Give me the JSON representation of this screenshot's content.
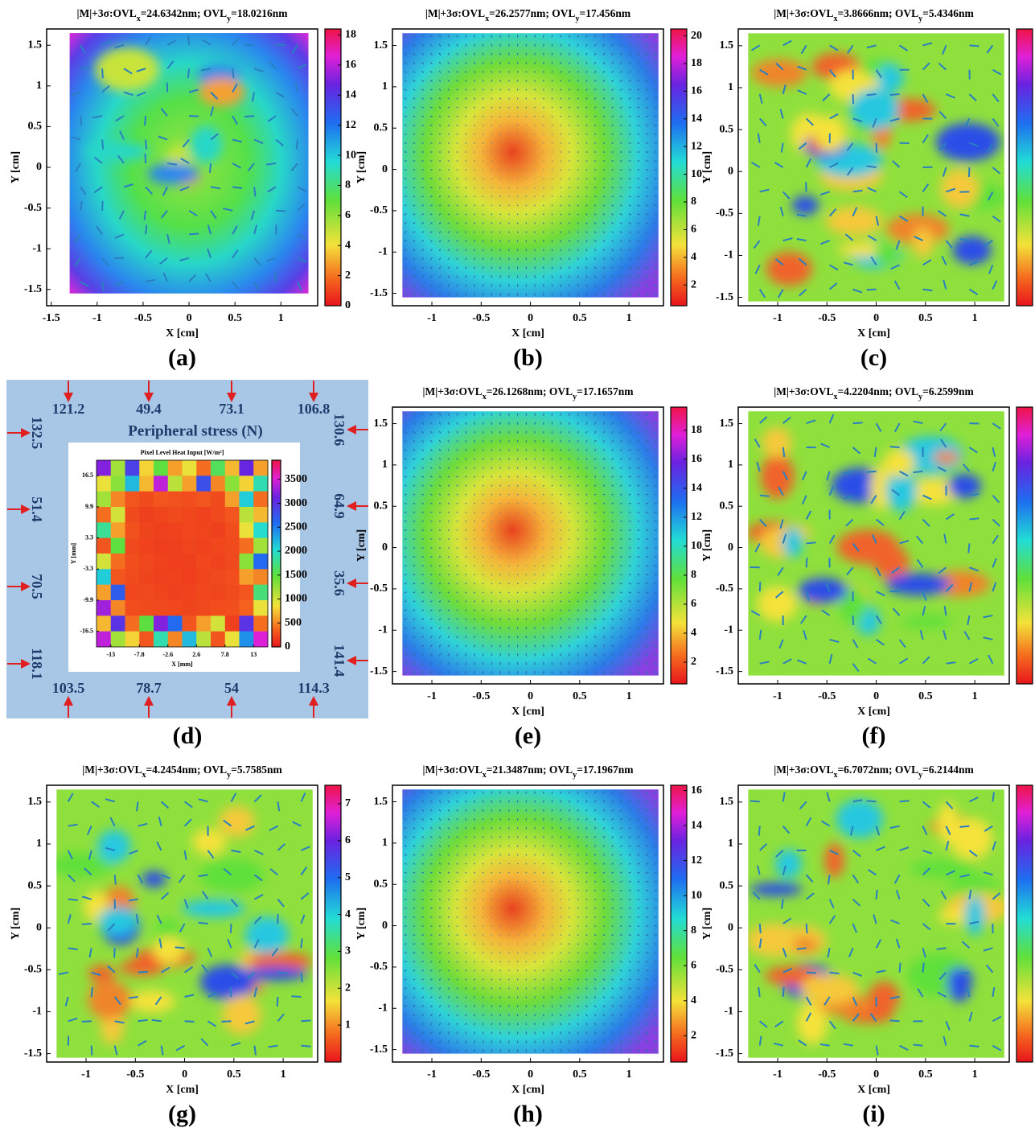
{
  "chart_data": [
    {
      "type": "contour",
      "title": [
        "|M|+3σ:OVL",
        "x",
        "=24.6342nm; OVL",
        "y",
        "=18.0216nm"
      ],
      "xlabel": "X [cm]",
      "ylabel": "Y [cm]",
      "xlim": [
        -1.55,
        1.4
      ],
      "xticks": [
        -1.5,
        -1,
        -0.5,
        0,
        0.5,
        1
      ],
      "ylim": [
        -1.7,
        1.7
      ],
      "yticks": [
        -1.5,
        -1,
        -0.5,
        0,
        0.5,
        1,
        1.5
      ],
      "clim": [
        0,
        18.4
      ],
      "cticks": [
        0,
        2,
        4,
        6,
        8,
        10,
        12,
        14,
        16,
        18
      ],
      "panel": "(a)"
    },
    {
      "type": "contour",
      "title": [
        "|M|+3σ:OVL",
        "x",
        "=26.2577nm; OVL",
        "y",
        "=17.456nm"
      ],
      "xlabel": "X [cm]",
      "ylabel": "Y [cm]",
      "xlim": [
        -1.4,
        1.35
      ],
      "xticks": [
        -1,
        -0.5,
        0,
        0.5,
        1
      ],
      "ylim": [
        -1.65,
        1.7
      ],
      "yticks": [
        -1.5,
        -1,
        -0.5,
        0,
        0.5,
        1,
        1.5
      ],
      "clim": [
        0.5,
        20.5
      ],
      "cticks": [
        2,
        4,
        6,
        8,
        10,
        12,
        14,
        16,
        18,
        20
      ],
      "panel": "(b)"
    },
    {
      "type": "contour",
      "title": [
        "|M|+3σ:OVL",
        "x",
        "=3.8666nm; OVL",
        "y",
        "=5.4346nm"
      ],
      "xlabel": "X [cm]",
      "ylabel": "Y [cm]",
      "xlim": [
        -1.4,
        1.35
      ],
      "xticks": [
        -1,
        -0.5,
        0,
        0.5,
        1
      ],
      "ylim": [
        -1.6,
        1.7
      ],
      "yticks": [
        -1.5,
        -1,
        -0.5,
        0,
        0.5,
        1,
        1.5
      ],
      "panel": "(c)"
    },
    {
      "type": "heatmap",
      "title": "Pixel Level Heat Input [W/m²]",
      "xlabel": "X [mm]",
      "ylabel": "Y [mm]",
      "xlim": [
        -15.6,
        15.6
      ],
      "xticks": [
        -13,
        -7.8,
        -2.6,
        2.6,
        7.8,
        13
      ],
      "ylim": [
        -19.8,
        19.8
      ],
      "yticks": [
        16.5,
        9.9,
        3.3,
        -3.3,
        -9.9,
        -16.5
      ],
      "clim": [
        0,
        3900
      ],
      "cticks": [
        0,
        500,
        1000,
        1500,
        2000,
        2500,
        3000,
        3500
      ],
      "z": [
        [
          3200,
          1200,
          2900,
          800,
          1500,
          600,
          900,
          400,
          1600,
          700,
          3100,
          600
        ],
        [
          900,
          1300,
          2200,
          700,
          3400,
          1100,
          600,
          2800,
          500,
          1300,
          800,
          1900
        ],
        [
          1200,
          500,
          300,
          250,
          300,
          280,
          260,
          300,
          250,
          600,
          2100,
          400
        ],
        [
          400,
          1000,
          250,
          200,
          220,
          250,
          230,
          210,
          240,
          300,
          1100,
          700
        ],
        [
          1800,
          600,
          280,
          220,
          200,
          210,
          230,
          220,
          200,
          260,
          900,
          2000
        ],
        [
          300,
          1500,
          240,
          210,
          190,
          200,
          220,
          210,
          230,
          250,
          400,
          1200
        ],
        [
          1000,
          400,
          260,
          230,
          210,
          190,
          200,
          230,
          210,
          240,
          1300,
          2600
        ],
        [
          2100,
          300,
          250,
          220,
          200,
          210,
          190,
          220,
          240,
          260,
          600,
          500
        ],
        [
          600,
          2700,
          230,
          240,
          220,
          200,
          210,
          230,
          220,
          250,
          300,
          1700
        ],
        [
          3300,
          500,
          260,
          250,
          240,
          230,
          220,
          240,
          260,
          270,
          350,
          900
        ],
        [
          700,
          3000,
          400,
          1500,
          3200,
          2600,
          300,
          600,
          1000,
          200,
          3000,
          400
        ],
        [
          3400,
          1200,
          800,
          300,
          1900,
          500,
          2200,
          1100,
          300,
          900,
          2400,
          3500
        ]
      ],
      "stress": {
        "title": "Peripheral stress (N)",
        "top": [
          121.2,
          49.4,
          73.1,
          106.8
        ],
        "bottom": [
          103.5,
          78.7,
          54,
          114.3
        ],
        "left": [
          132.5,
          51.4,
          70.5,
          118.1
        ],
        "right": [
          130.6,
          64.9,
          35.6,
          141.4
        ]
      },
      "panel": "(d)"
    },
    {
      "type": "contour",
      "title": [
        "|M|+3σ:OVL",
        "x",
        "=26.1268nm; OVL",
        "y",
        "=17.1657nm"
      ],
      "xlabel": "X [cm]",
      "ylabel": "Y [cm]",
      "xlim": [
        -1.4,
        1.35
      ],
      "xticks": [
        -1,
        -0.5,
        0,
        0.5,
        1
      ],
      "ylim": [
        -1.65,
        1.7
      ],
      "yticks": [
        -1.5,
        -1,
        -0.5,
        0,
        0.5,
        1,
        1.5
      ],
      "clim": [
        0.5,
        19.6
      ],
      "cticks": [
        2,
        4,
        6,
        8,
        10,
        12,
        14,
        16,
        18
      ],
      "panel": "(e)"
    },
    {
      "type": "contour",
      "title": [
        "|M|+3σ:OVL",
        "x",
        "=4.2204nm; OVL",
        "y",
        "=6.2599nm"
      ],
      "xlabel": "X [cm]",
      "ylabel": "Y [cm]",
      "xlim": [
        -1.4,
        1.35
      ],
      "xticks": [
        -1,
        -0.5,
        0,
        0.5,
        1
      ],
      "ylim": [
        -1.65,
        1.7
      ],
      "yticks": [
        -1.5,
        -1,
        -0.5,
        0,
        0.5,
        1,
        1.5
      ],
      "panel": "(f)"
    },
    {
      "type": "contour",
      "title": [
        "|M|+3σ:OVL",
        "x",
        "=4.2454nm; OVL",
        "y",
        "=5.7585nm"
      ],
      "xlabel": "X [cm]",
      "ylabel": "Y [cm]",
      "xlim": [
        -1.4,
        1.35
      ],
      "xticks": [
        -1,
        -0.5,
        0,
        0.5,
        1
      ],
      "ylim": [
        -1.6,
        1.7
      ],
      "yticks": [
        -1.5,
        -1,
        -0.5,
        0,
        0.5,
        1,
        1.5
      ],
      "clim": [
        0,
        7.5
      ],
      "cticks": [
        1,
        2,
        3,
        4,
        5,
        6,
        7
      ],
      "panel": "(g)"
    },
    {
      "type": "contour",
      "title": [
        "|M|+3σ:OVL",
        "x",
        "=21.3487nm; OVL",
        "y",
        "=17.1967nm"
      ],
      "xlabel": "X [cm]",
      "ylabel": "Y [cm]",
      "xlim": [
        -1.4,
        1.35
      ],
      "xticks": [
        -1,
        -0.5,
        0,
        0.5,
        1
      ],
      "ylim": [
        -1.65,
        1.7
      ],
      "yticks": [
        -1.5,
        -1,
        -0.5,
        0,
        0.5,
        1,
        1.5
      ],
      "clim": [
        0.5,
        16.3
      ],
      "cticks": [
        2,
        4,
        6,
        8,
        10,
        12,
        14,
        16
      ],
      "panel": "(h)"
    },
    {
      "type": "contour",
      "title": [
        "|M|+3σ:OVL",
        "x",
        "=6.7072nm; OVL",
        "y",
        "=6.2144nm"
      ],
      "xlabel": "X [cm]",
      "ylabel": "Y [cm]",
      "xlim": [
        -1.4,
        1.35
      ],
      "xticks": [
        -1,
        -0.5,
        0,
        0.5,
        1
      ],
      "ylim": [
        -1.6,
        1.7
      ],
      "yticks": [
        -1.5,
        -1,
        -0.5,
        0,
        0.5,
        1,
        1.5
      ],
      "panel": "(i)"
    }
  ]
}
